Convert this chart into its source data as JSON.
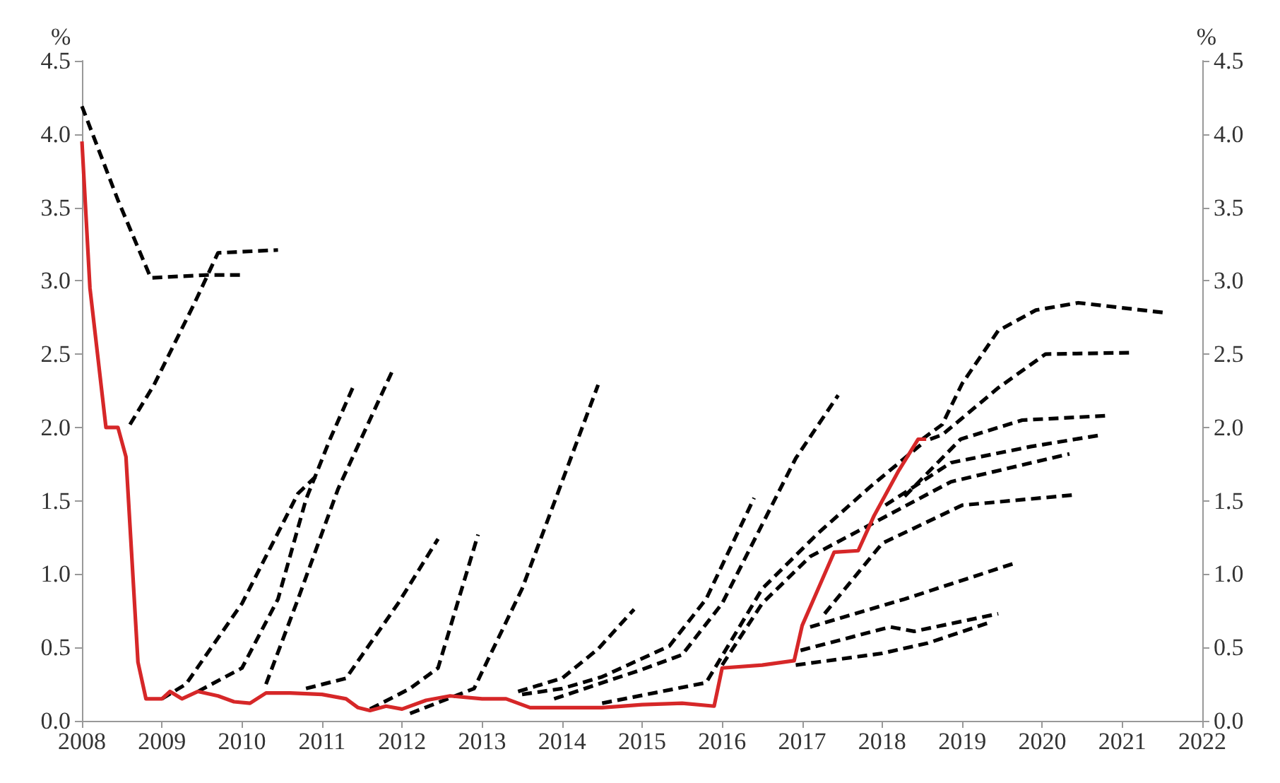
{
  "chart_data": {
    "type": "line",
    "ylabel": "%",
    "y2label": "%",
    "xlim": [
      2008,
      2022
    ],
    "xticks": [
      2008,
      2009,
      2010,
      2011,
      2012,
      2013,
      2014,
      2015,
      2016,
      2017,
      2018,
      2019,
      2020,
      2021,
      2022
    ],
    "ylim": [
      0,
      4.5
    ],
    "yticks": [
      {
        "value": 0,
        "label": "0.0"
      },
      0.5,
      {
        "value": 1,
        "label": "1.0"
      },
      1.5,
      {
        "value": 2,
        "label": "2.0"
      },
      2.5,
      {
        "value": 3,
        "label": "3.0"
      },
      3.5,
      {
        "value": 4,
        "label": "4.0"
      },
      4.5
    ],
    "y2lim": [
      0,
      4.5
    ],
    "y2ticks": [
      {
        "value": 0,
        "label": "0.0"
      },
      0.5,
      {
        "value": 1,
        "label": "1.0"
      },
      1.5,
      {
        "value": 2,
        "label": "2.0"
      },
      2.5,
      {
        "value": 3,
        "label": "3.0"
      },
      3.5,
      {
        "value": 4,
        "label": "4.0"
      },
      4.5
    ],
    "grid": false,
    "marker": "none",
    "line_style": "dashed",
    "series": [
      {
        "color": "#000000",
        "x": [
          2008.0,
          2008.45,
          2008.86,
          2009.57,
          2010.0
        ],
        "values": [
          4.19,
          3.55,
          3.02,
          3.04,
          3.04
        ]
      },
      {
        "color": "#000000",
        "x": [
          2008.6,
          2008.9,
          2009.4,
          2009.7,
          2010.45
        ],
        "values": [
          2.02,
          2.29,
          2.84,
          3.19,
          3.21
        ]
      },
      {
        "color": "#000000",
        "x": [
          2009.0,
          2009.3,
          2010.0,
          2010.7,
          2010.95
        ],
        "values": [
          0.15,
          0.25,
          0.8,
          1.55,
          1.68
        ]
      },
      {
        "color": "#000000",
        "x": [
          2009.45,
          2010.0,
          2010.45,
          2010.8,
          2011.1,
          2011.4
        ],
        "values": [
          0.2,
          0.36,
          0.83,
          1.51,
          1.92,
          2.29
        ]
      },
      {
        "color": "#000000",
        "x": [
          2010.3,
          2010.7,
          2011.2,
          2011.9
        ],
        "values": [
          0.25,
          0.83,
          1.58,
          2.41
        ]
      },
      {
        "color": "#000000",
        "x": [
          2010.8,
          2011.3,
          2011.95,
          2012.45
        ],
        "values": [
          0.22,
          0.29,
          0.8,
          1.24
        ]
      },
      {
        "color": "#000000",
        "x": [
          2011.6,
          2012.1,
          2012.45,
          2012.95
        ],
        "values": [
          0.08,
          0.22,
          0.36,
          1.27
        ]
      },
      {
        "color": "#000000",
        "x": [
          2012.1,
          2012.9,
          2013.5,
          2014.45
        ],
        "values": [
          0.05,
          0.22,
          0.9,
          2.29
        ]
      },
      {
        "color": "#000000",
        "x": [
          2013.45,
          2014.0,
          2014.45,
          2014.9
        ],
        "values": [
          0.2,
          0.29,
          0.49,
          0.76
        ]
      },
      {
        "color": "#000000",
        "x": [
          2013.5,
          2014.0,
          2014.5,
          2015.34,
          2015.8,
          2016.4
        ],
        "values": [
          0.18,
          0.22,
          0.3,
          0.51,
          0.83,
          1.52
        ]
      },
      {
        "color": "#000000",
        "x": [
          2013.9,
          2015.0,
          2015.5,
          2016.0,
          2016.92,
          2017.45
        ],
        "values": [
          0.15,
          0.35,
          0.45,
          0.8,
          1.79,
          2.22
        ]
      },
      {
        "color": "#000000",
        "x": [
          2014.5,
          2015.8,
          2016.5,
          2017.2,
          2017.86,
          2018.5
        ],
        "values": [
          0.12,
          0.26,
          0.9,
          1.28,
          1.6,
          1.89
        ]
      },
      {
        "color": "#000000",
        "x": [
          2018.5,
          2018.75,
          2019.0,
          2019.45,
          2019.92,
          2020.45,
          2021.57
        ],
        "values": [
          1.92,
          2.02,
          2.3,
          2.66,
          2.8,
          2.85,
          2.78
        ]
      },
      {
        "color": "#000000",
        "x": [
          2018.6,
          2018.75,
          2019.45,
          2020.04,
          2021.1
        ],
        "values": [
          1.92,
          1.95,
          2.27,
          2.5,
          2.51
        ]
      },
      {
        "color": "#000000",
        "x": [
          2018.28,
          2018.98,
          2019.75,
          2020.8
        ],
        "values": [
          1.53,
          1.92,
          2.05,
          2.08
        ]
      },
      {
        "color": "#000000",
        "x": [
          2018.04,
          2018.86,
          2019.86,
          2020.75
        ],
        "values": [
          1.47,
          1.76,
          1.87,
          1.95
        ]
      },
      {
        "color": "#000000",
        "x": [
          2016.0,
          2016.5,
          2017.1,
          2017.86,
          2018.86,
          2020.34
        ],
        "values": [
          0.38,
          0.8,
          1.12,
          1.34,
          1.63,
          1.82
        ]
      },
      {
        "color": "#000000",
        "x": [
          2017.28,
          2018.0,
          2019.0,
          2020.4
        ],
        "values": [
          0.73,
          1.21,
          1.47,
          1.54
        ]
      },
      {
        "color": "#000000",
        "x": [
          2017.1,
          2018.28,
          2019.63
        ],
        "values": [
          0.64,
          0.83,
          1.07
        ]
      },
      {
        "color": "#000000",
        "x": [
          2016.98,
          2018.1,
          2018.4,
          2019.45
        ],
        "values": [
          0.48,
          0.64,
          0.61,
          0.73
        ]
      },
      {
        "color": "#000000",
        "x": [
          2016.92,
          2018.0,
          2018.57,
          2019.34
        ],
        "values": [
          0.38,
          0.46,
          0.53,
          0.67
        ]
      },
      {
        "color": "#d62728",
        "line_style": "solid",
        "x": [
          2008.0,
          2008.1,
          2008.3,
          2008.45,
          2008.55,
          2008.7,
          2008.8,
          2009.0,
          2009.1,
          2009.25,
          2009.45,
          2009.7,
          2009.9,
          2010.1,
          2010.3,
          2010.6,
          2011.0,
          2011.3,
          2011.45,
          2011.6,
          2011.8,
          2012.0,
          2012.3,
          2012.6,
          2013.0,
          2013.3,
          2013.6,
          2014.0,
          2014.5,
          2015.0,
          2015.5,
          2015.9,
          2016.0,
          2016.5,
          2016.9,
          2017.0,
          2017.2,
          2017.4,
          2017.7,
          2017.9,
          2018.2,
          2018.45,
          2018.55
        ],
        "values": [
          3.95,
          2.95,
          2.0,
          2.0,
          1.8,
          0.4,
          0.15,
          0.15,
          0.2,
          0.15,
          0.2,
          0.17,
          0.13,
          0.12,
          0.19,
          0.19,
          0.18,
          0.15,
          0.09,
          0.07,
          0.1,
          0.08,
          0.14,
          0.17,
          0.15,
          0.15,
          0.09,
          0.09,
          0.09,
          0.11,
          0.12,
          0.1,
          0.36,
          0.38,
          0.41,
          0.65,
          0.9,
          1.15,
          1.16,
          1.4,
          1.7,
          1.92,
          1.92
        ]
      }
    ]
  }
}
